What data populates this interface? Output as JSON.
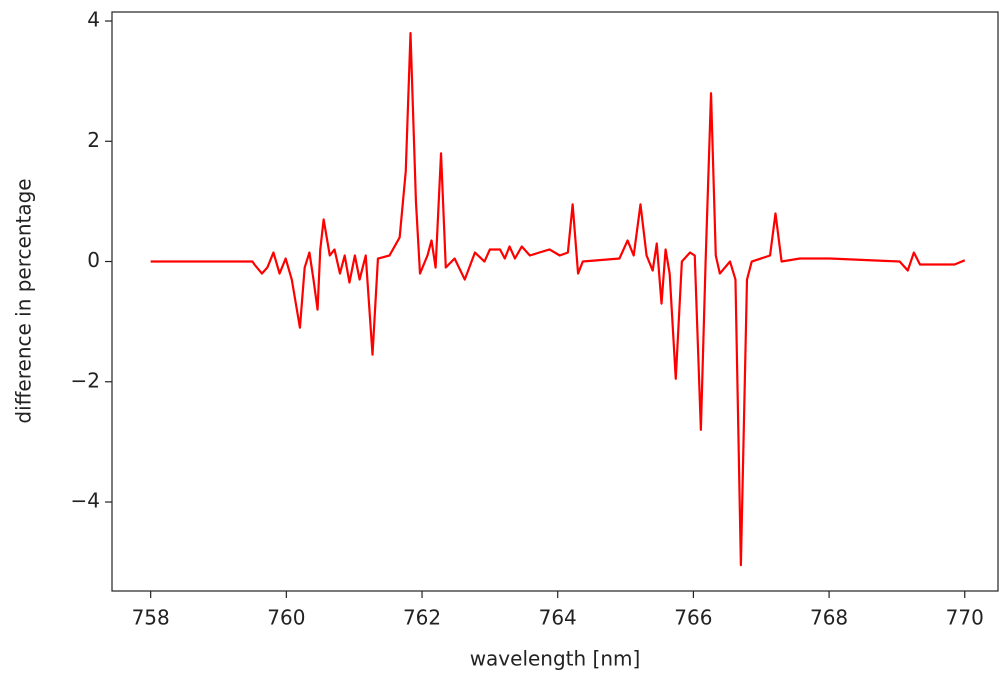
{
  "chart_data": {
    "type": "line",
    "xlabel": "wavelength [nm]",
    "ylabel": "difference in percentage",
    "xlim": [
      757.43,
      770.49
    ],
    "ylim": [
      -5.48,
      4.15
    ],
    "xticks": [
      758,
      760,
      762,
      764,
      766,
      768,
      770
    ],
    "yticks": [
      {
        "value": -4,
        "label": "−4"
      },
      {
        "value": -2,
        "label": "−2"
      },
      0,
      2,
      4
    ],
    "series": [
      {
        "color": "#ff0000",
        "x": [
          758,
          759.5,
          759.53,
          759.64,
          759.72,
          759.81,
          759.9,
          759.99,
          760.08,
          760.2,
          760.27,
          760.34,
          760.4,
          760.46,
          760.5,
          760.55,
          760.64,
          760.71,
          760.79,
          760.86,
          760.93,
          761.01,
          761.08,
          761.17,
          761.27,
          761.35,
          761.52,
          761.67,
          761.76,
          761.83,
          761.91,
          761.97,
          762.08,
          762.14,
          762.2,
          762.28,
          762.35,
          762.48,
          762.63,
          762.78,
          762.92,
          763.0,
          763.15,
          763.22,
          763.29,
          763.37,
          763.47,
          763.59,
          763.73,
          763.88,
          764.03,
          764.15,
          764.22,
          764.3,
          764.37,
          764.91,
          765.03,
          765.12,
          765.22,
          765.31,
          765.4,
          765.46,
          765.53,
          765.59,
          765.65,
          765.74,
          765.83,
          765.95,
          766.02,
          766.11,
          766.18,
          766.26,
          766.33,
          766.39,
          766.54,
          766.62,
          766.7,
          766.79,
          766.86,
          767.13,
          767.21,
          767.3,
          767.57,
          768.01,
          769.04,
          769.16,
          769.25,
          769.34,
          769.85,
          770
        ],
        "values": [
          0,
          0,
          -0.05,
          -0.2,
          -0.1,
          0.15,
          -0.2,
          0.05,
          -0.3,
          -1.1,
          -0.1,
          0.15,
          -0.3,
          -0.8,
          0.2,
          0.7,
          0.1,
          0.2,
          -0.2,
          0.1,
          -0.35,
          0.1,
          -0.3,
          0.1,
          -1.55,
          0.05,
          0.1,
          0.4,
          1.5,
          3.8,
          1.0,
          -0.2,
          0.1,
          0.35,
          -0.1,
          1.8,
          -0.1,
          0.05,
          -0.3,
          0.15,
          0.0,
          0.2,
          0.2,
          0.05,
          0.25,
          0.05,
          0.25,
          0.1,
          0.15,
          0.2,
          0.1,
          0.15,
          0.95,
          -0.2,
          0,
          0.05,
          0.35,
          0.1,
          0.95,
          0.1,
          -0.15,
          0.3,
          -0.7,
          0.2,
          -0.2,
          -1.95,
          0,
          0.15,
          0.1,
          -2.8,
          0,
          2.8,
          0.1,
          -0.2,
          0,
          -0.3,
          -5.05,
          -0.3,
          0,
          0.1,
          0.8,
          0,
          0.05,
          0.05,
          0,
          -0.15,
          0.15,
          -0.05,
          -0.05,
          0.02
        ]
      }
    ]
  }
}
